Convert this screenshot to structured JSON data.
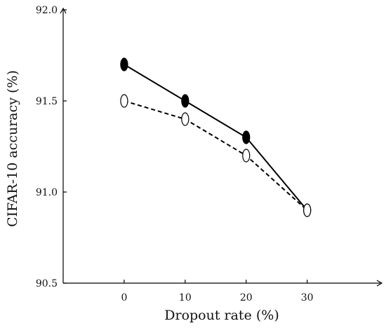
{
  "chart_data": {
    "type": "line",
    "xlabel": "Dropout rate (%)",
    "ylabel": "CIFAR-10 accuracy (%)",
    "x": [
      0,
      10,
      20,
      30
    ],
    "x_tick_labels": [
      "0",
      "10",
      "20",
      "30"
    ],
    "y_tick_labels": [
      "90.5",
      "91.0",
      "91.5",
      "92.0"
    ],
    "y_ticks": [
      90.5,
      91.0,
      91.5,
      92.0
    ],
    "xlim": [
      -10,
      42
    ],
    "ylim": [
      90.5,
      92.0
    ],
    "grid": false,
    "legend": "none",
    "series": [
      {
        "values": [
          91.7,
          91.5,
          91.3,
          90.9
        ],
        "line_style": "solid",
        "marker": "filled-ellipse",
        "color": "#000000"
      },
      {
        "values": [
          91.5,
          91.4,
          91.2,
          90.9
        ],
        "line_style": "dashed",
        "marker": "open-ellipse",
        "color": "#000000"
      }
    ]
  }
}
